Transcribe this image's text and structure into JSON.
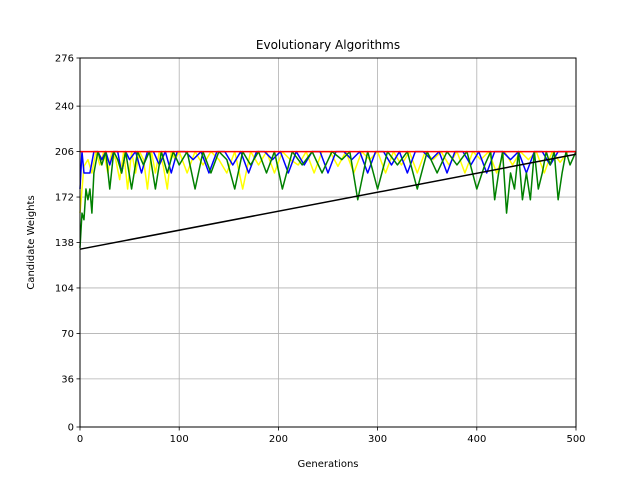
{
  "chart_data": {
    "type": "line",
    "title": "Evolutionary Algorithms",
    "xlabel": "Generations",
    "ylabel": "Candidate Weights",
    "xlim": [
      0,
      500
    ],
    "ylim": [
      0,
      276
    ],
    "xticks": [
      0,
      100,
      200,
      300,
      400,
      500
    ],
    "yticks": [
      0,
      36,
      70,
      104,
      138,
      172,
      206,
      240,
      276
    ],
    "grid": true,
    "legend": "none",
    "series": [
      {
        "color": "#ffff00",
        "x": [
          0,
          4,
          8,
          12,
          16,
          20,
          24,
          28,
          32,
          36,
          40,
          44,
          48,
          52,
          56,
          60,
          64,
          68,
          72,
          76,
          80,
          84,
          88,
          92,
          96,
          100,
          108,
          116,
          124,
          132,
          140,
          148,
          156,
          164,
          172,
          180,
          188,
          196,
          204,
          212,
          220,
          228,
          236,
          244,
          252,
          260,
          268,
          276,
          284,
          292,
          300,
          308,
          316,
          324,
          332,
          340,
          348,
          356,
          364,
          372,
          380,
          388,
          396,
          404,
          412,
          420,
          428,
          436,
          444,
          452,
          460,
          468,
          476,
          484,
          492,
          500
        ],
        "y": [
          160,
          195,
          200,
          190,
          206,
          196,
          206,
          190,
          206,
          200,
          185,
          206,
          178,
          206,
          190,
          206,
          200,
          178,
          206,
          190,
          206,
          195,
          178,
          206,
          200,
          206,
          190,
          206,
          196,
          206,
          200,
          190,
          206,
          178,
          206,
          196,
          206,
          190,
          206,
          200,
          196,
          206,
          190,
          206,
          206,
          195,
          206,
          190,
          206,
          200,
          206,
          190,
          206,
          196,
          206,
          190,
          206,
          200,
          206,
          196,
          206,
          190,
          206,
          200,
          206,
          190,
          206,
          196,
          206,
          200,
          206,
          190,
          206,
          198,
          206,
          206
        ]
      },
      {
        "color": "#0000ff",
        "x": [
          0,
          2,
          4,
          6,
          10,
          14,
          18,
          22,
          26,
          30,
          34,
          38,
          42,
          46,
          50,
          56,
          62,
          68,
          74,
          80,
          86,
          92,
          98,
          106,
          114,
          122,
          130,
          138,
          146,
          154,
          162,
          170,
          178,
          186,
          194,
          202,
          210,
          218,
          226,
          234,
          242,
          250,
          258,
          266,
          274,
          282,
          290,
          298,
          306,
          314,
          322,
          330,
          338,
          346,
          354,
          362,
          370,
          378,
          386,
          394,
          402,
          410,
          418,
          426,
          434,
          442,
          450,
          458,
          466,
          474,
          482,
          490,
          500
        ],
        "y": [
          178,
          206,
          190,
          190,
          190,
          206,
          206,
          200,
          206,
          196,
          206,
          206,
          190,
          206,
          200,
          206,
          190,
          206,
          206,
          196,
          206,
          190,
          206,
          206,
          200,
          206,
          190,
          206,
          206,
          196,
          206,
          190,
          206,
          206,
          200,
          206,
          190,
          206,
          196,
          206,
          206,
          190,
          206,
          206,
          200,
          206,
          190,
          206,
          206,
          196,
          206,
          190,
          206,
          206,
          200,
          206,
          190,
          206,
          206,
          196,
          206,
          190,
          206,
          206,
          200,
          206,
          190,
          206,
          206,
          196,
          206,
          206,
          206
        ]
      },
      {
        "color": "#008000",
        "x": [
          0,
          2,
          4,
          6,
          8,
          10,
          12,
          14,
          18,
          22,
          26,
          30,
          34,
          38,
          42,
          46,
          52,
          58,
          64,
          70,
          76,
          82,
          88,
          94,
          100,
          108,
          116,
          124,
          132,
          140,
          148,
          156,
          164,
          172,
          180,
          188,
          196,
          204,
          214,
          224,
          234,
          244,
          254,
          264,
          272,
          280,
          290,
          300,
          310,
          320,
          330,
          340,
          350,
          360,
          370,
          380,
          390,
          400,
          408,
          414,
          418,
          422,
          426,
          430,
          434,
          438,
          442,
          446,
          450,
          454,
          458,
          462,
          466,
          470,
          474,
          478,
          482,
          486,
          490,
          494,
          500
        ],
        "y": [
          134,
          160,
          155,
          178,
          170,
          178,
          160,
          190,
          206,
          196,
          206,
          178,
          206,
          200,
          190,
          206,
          178,
          206,
          196,
          206,
          178,
          206,
          190,
          206,
          196,
          206,
          178,
          206,
          190,
          206,
          200,
          178,
          206,
          196,
          206,
          190,
          206,
          178,
          206,
          196,
          206,
          190,
          206,
          200,
          206,
          170,
          206,
          178,
          206,
          196,
          206,
          178,
          206,
          190,
          206,
          196,
          206,
          178,
          196,
          206,
          170,
          190,
          206,
          160,
          190,
          178,
          206,
          170,
          190,
          170,
          206,
          178,
          190,
          206,
          196,
          206,
          170,
          190,
          206,
          196,
          206
        ]
      },
      {
        "color": "#ff0000",
        "x": [
          0,
          500
        ],
        "y": [
          206,
          206
        ]
      },
      {
        "color": "#000000",
        "x": [
          0,
          500
        ],
        "y": [
          133,
          204
        ]
      }
    ]
  }
}
